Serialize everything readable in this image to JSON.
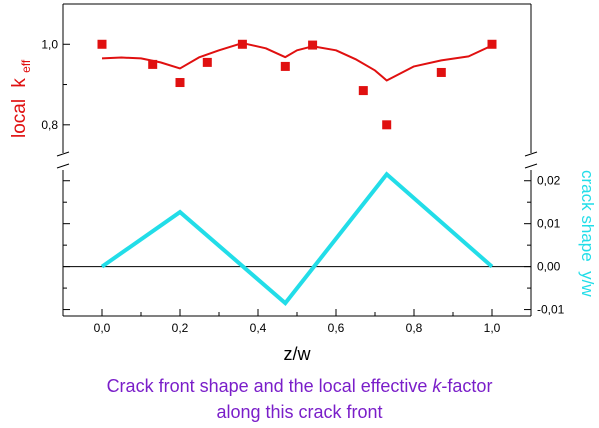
{
  "chart_data": [
    {
      "type": "line",
      "ylabel": "local",
      "ylabel_symbol": "k",
      "ylabel_subscript": "eff",
      "ylim": [
        0.73,
        1.1
      ],
      "y_ticks": [
        0.8,
        1.0
      ],
      "y_tick_labels": [
        "0,8",
        "1,0"
      ],
      "series": [
        {
          "mark": "line",
          "color": "#e01010",
          "x": [
            0.0,
            0.05,
            0.1,
            0.15,
            0.2,
            0.25,
            0.3,
            0.36,
            0.42,
            0.47,
            0.5,
            0.54,
            0.6,
            0.65,
            0.7,
            0.73,
            0.8,
            0.87,
            0.94,
            1.0
          ],
          "y": [
            0.965,
            0.967,
            0.965,
            0.955,
            0.94,
            0.968,
            0.985,
            1.003,
            0.99,
            0.968,
            0.985,
            0.995,
            0.985,
            0.963,
            0.935,
            0.91,
            0.945,
            0.96,
            0.97,
            0.997
          ]
        },
        {
          "mark": "square",
          "color": "#e01010",
          "x": [
            0.0,
            0.13,
            0.2,
            0.27,
            0.36,
            0.47,
            0.54,
            0.67,
            0.73,
            0.87,
            1.0
          ],
          "y": [
            1.0,
            0.95,
            0.905,
            0.955,
            1.0,
            0.945,
            0.998,
            0.885,
            0.8,
            0.93,
            1.0
          ]
        }
      ]
    },
    {
      "type": "line",
      "ylabel": "crack shape  y/w",
      "ylim": [
        -0.0115,
        0.0225
      ],
      "y_ticks": [
        -0.01,
        0.0,
        0.01,
        0.02
      ],
      "y_tick_labels": [
        "-0,01",
        "0,00",
        "0,01",
        "0,02"
      ],
      "x_ticks": [
        0.0,
        0.2,
        0.4,
        0.6,
        0.8,
        1.0
      ],
      "x_tick_labels": [
        "0,0",
        "0,2",
        "0,4",
        "0,6",
        "0,8",
        "1,0"
      ],
      "xlabel": "z/w",
      "xlim": [
        -0.1,
        1.1
      ],
      "zero_line": true,
      "series": [
        {
          "mark": "line",
          "color": "#22dde8",
          "x": [
            0.0,
            0.2,
            0.47,
            0.73,
            1.0
          ],
          "y": [
            0.0,
            0.0127,
            -0.0085,
            0.0215,
            0.0
          ]
        }
      ]
    }
  ],
  "caption": {
    "line1_pre": "Crack front shape and the local effective ",
    "line1_italic": "k",
    "line1_post": "-factor",
    "line2": "along this crack front"
  },
  "colors": {
    "upper_series": "#e01010",
    "lower_series": "#22dde8",
    "caption": "#7a1ec9"
  }
}
